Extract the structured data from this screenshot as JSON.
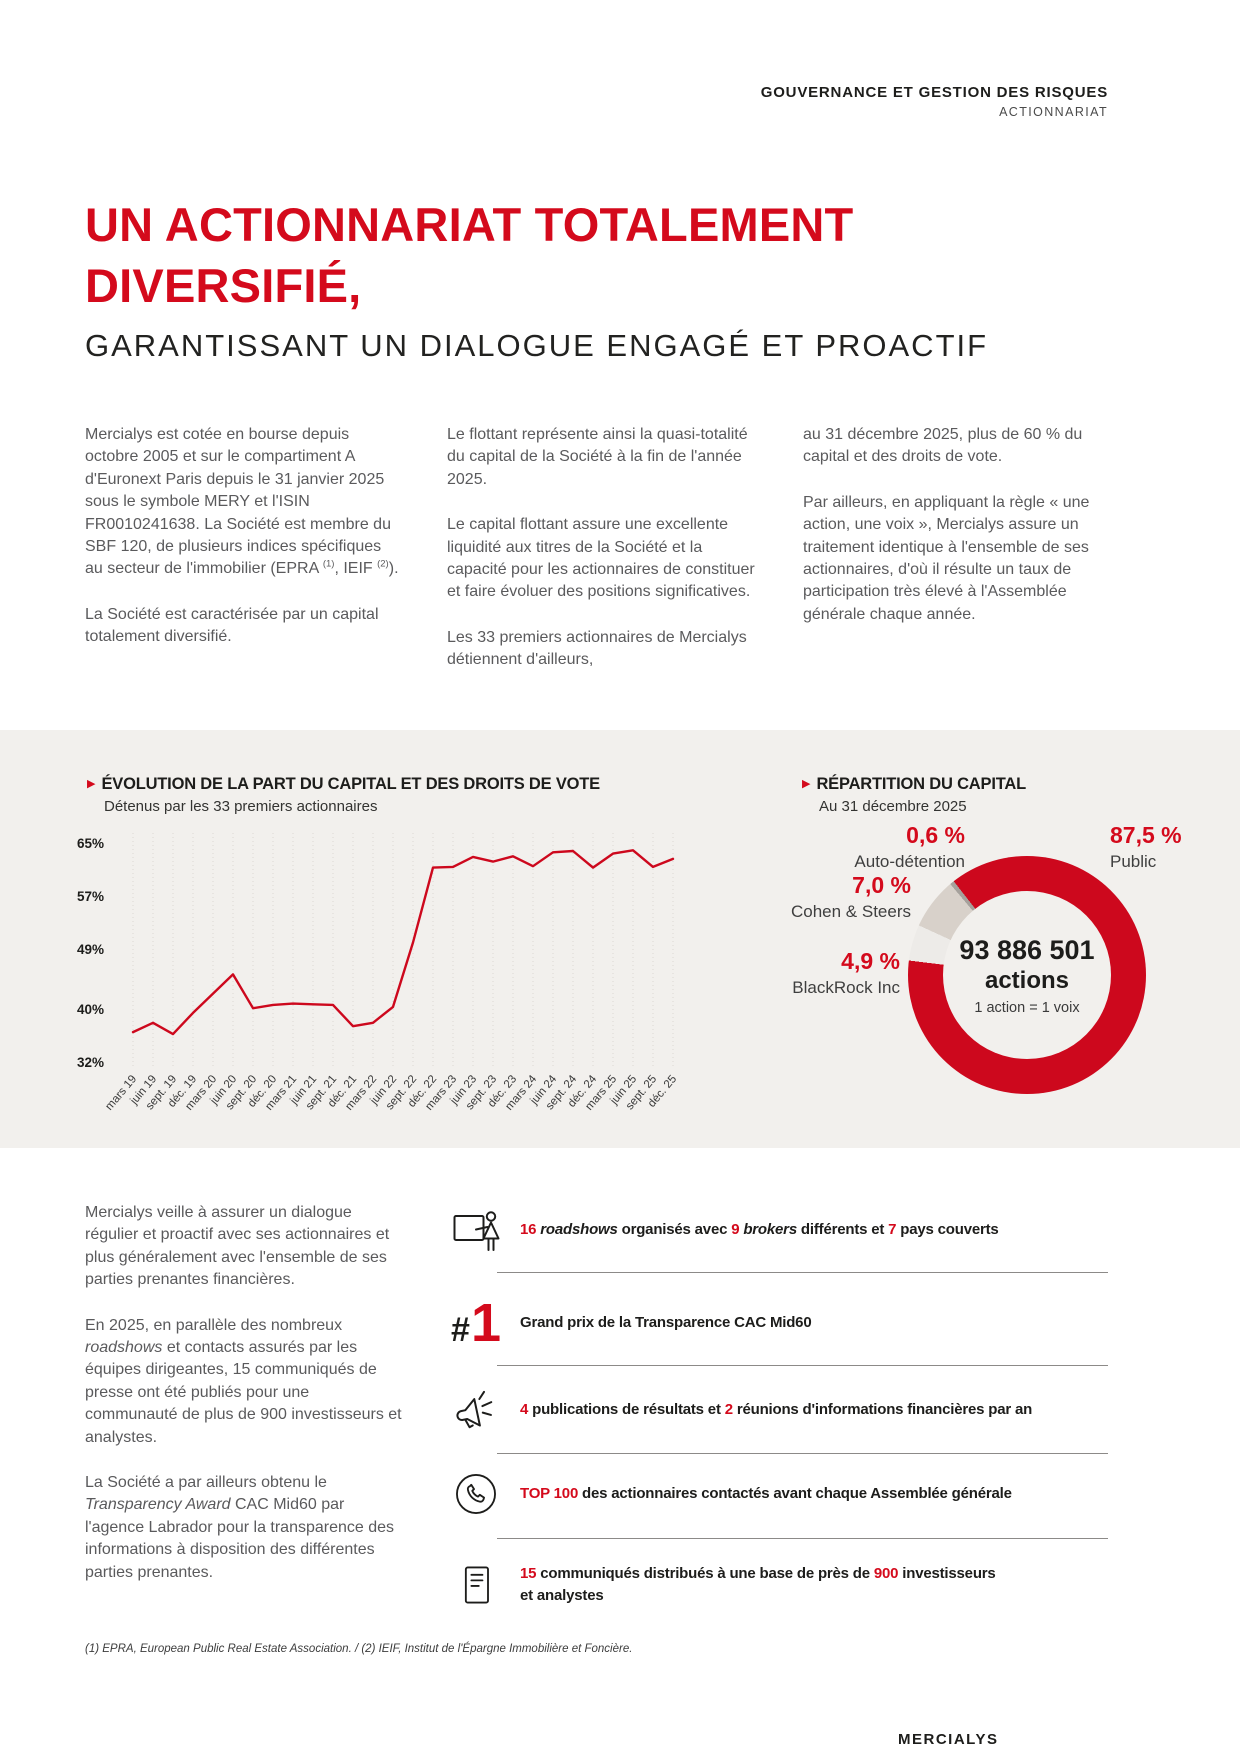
{
  "meta": {
    "doc_header_line1": "GOUVERNANCE ET GESTION DES RISQUES",
    "doc_header_line2": "ACTIONNARIAT",
    "brand_red": "#d40a1c",
    "band_background": "#f2f0ed"
  },
  "title": {
    "line1": "UN ACTIONNARIAT TOTALEMENT",
    "line2": "DIVERSIFIÉ,",
    "subtitle": "GARANTISSANT UN DIALOGUE ENGAGÉ ET PROACTIF"
  },
  "intro": {
    "col1": {
      "p1_segments": [
        {
          "text": "Mercialys est cotée en bourse depuis octobre 2005 et sur le compartiment A d'Euronext Paris depuis le 31 janvier 2025 sous le symbole MERY et l'ISIN FR0010241638. La Société est membre du SBF 120, de plusieurs indices spécifiques au secteur de l'immobilier (EPRA "
        },
        {
          "text": "(1)",
          "sup": true
        },
        {
          "text": ", IEIF "
        },
        {
          "text": "(2)",
          "sup": true
        },
        {
          "text": ")."
        }
      ],
      "p2": "La Société est caractérisée par un capital totalement diversifié."
    },
    "col2": {
      "p1": "Le flottant représente ainsi la quasi-totalité du capital de la Société à la fin de l'année 2025.",
      "p2": "Le capital flottant assure une excellente liquidité aux titres de la Société et la capacité pour les actionnaires de constituer et faire évoluer des positions significatives.",
      "p3": "Les 33 premiers actionnaires de Mercialys détiennent d'ailleurs,"
    },
    "col3": {
      "p1": "au 31 décembre 2025, plus de 60 % du capital et des droits de vote.",
      "p2": "Par ailleurs, en appliquant la règle « une action, une voix », Mercialys assure un traitement identique à l'ensemble de ses actionnaires, d'où il résulte un taux de participation très élevé à l'Assemblée générale chaque année."
    }
  },
  "chart_data": [
    {
      "type": "line",
      "title": "ÉVOLUTION DE LA PART DU CAPITAL ET DES DROITS DE VOTE",
      "subtitle": "Détenus par les 33 premiers actionnaires",
      "x": [
        "mars 19",
        "juin 19",
        "sept. 19",
        "déc. 19",
        "mars 20",
        "juin 20",
        "sept. 20",
        "déc. 20",
        "mars 21",
        "juin 21",
        "sept. 21",
        "déc. 21",
        "mars 22",
        "juin 22",
        "sept. 22",
        "déc. 22",
        "mars 23",
        "juin 23",
        "sept. 23",
        "déc. 23",
        "mars 24",
        "juin 24",
        "sept. 24",
        "déc. 24",
        "mars 25",
        "juin 25",
        "sept. 25",
        "déc. 25"
      ],
      "values": [
        36.5,
        37.9,
        36.2,
        39.4,
        42.3,
        45.2,
        40.1,
        40.6,
        40.8,
        40.7,
        40.6,
        37.4,
        37.9,
        40.3,
        50.0,
        61.3,
        61.4,
        62.9,
        62.2,
        63.0,
        61.5,
        63.6,
        63.8,
        61.3,
        63.4,
        63.9,
        61.4,
        62.6
      ],
      "unit": "%",
      "ylim": [
        32,
        65
      ],
      "yticks": [
        {
          "value": 65,
          "label": "65%"
        },
        {
          "value": 57,
          "label": "57%"
        },
        {
          "value": 49,
          "label": "49%"
        },
        {
          "value": 40,
          "label": "40%"
        },
        {
          "value": 32,
          "label": "32%"
        }
      ],
      "line_color": "#cd081d",
      "grid": "vertical-dotted",
      "legend": "none"
    },
    {
      "type": "pie",
      "donut": true,
      "title": "RÉPARTITION DU CAPITAL",
      "subtitle": "Au 31 décembre 2025",
      "center": {
        "line1": "93 886 501",
        "line2": "actions",
        "line3": "1 action = 1 voix"
      },
      "slices": [
        {
          "label": "Public",
          "display": "87,5 %",
          "value": 87.5,
          "color": "#cd081d"
        },
        {
          "label": "Auto-détention",
          "display": "0,6 %",
          "value": 0.6,
          "color": "#a6a19c"
        },
        {
          "label": "Cohen & Steers",
          "display": "7,0 %",
          "value": 7.0,
          "color": "#d8d1ca"
        },
        {
          "label": "BlackRock Inc",
          "display": "4,9 %",
          "value": 4.9,
          "color": "#edebe8"
        }
      ],
      "gradient_from_deg": 322,
      "draw_order": [
        0,
        3,
        2,
        1
      ]
    }
  ],
  "dialogue": {
    "p1": "Mercialys veille à assurer un dialogue régulier et proactif avec ses actionnaires et plus généralement avec l'ensemble de ses parties prenantes financières.",
    "p2_segments": [
      {
        "text": "En 2025, en parallèle des nombreux "
      },
      {
        "text": "roadshows",
        "italic": true
      },
      {
        "text": " et contacts assurés par les équipes dirigeantes, 15 communiqués de presse ont été publiés pour une communauté de plus de 900 investisseurs et analystes."
      }
    ],
    "p3_segments": [
      {
        "text": "La Société a par ailleurs obtenu le "
      },
      {
        "text": "Transparency Award",
        "italic": true
      },
      {
        "text": " CAC Mid60 par l'agence Labrador pour la transparence des informations à disposition des différentes parties prenantes."
      }
    ]
  },
  "kpis": {
    "rows": [
      {
        "icon": "presentation-icon",
        "segments": [
          {
            "text": "16 ",
            "color": "#d40a1c"
          },
          {
            "text": "roadshows",
            "italic": true
          },
          {
            "text": " organisés avec "
          },
          {
            "text": "9 ",
            "color": "#d40a1c"
          },
          {
            "text": "brokers",
            "italic": true
          },
          {
            "text": " différents et "
          },
          {
            "text": "7",
            "color": "#d40a1c"
          },
          {
            "text": " pays couverts"
          }
        ]
      },
      {
        "icon": "rank-1-badge",
        "badge_hash": "#",
        "badge_number": "1",
        "segments": [
          {
            "text": "Grand prix de la Transparence CAC Mid60"
          }
        ]
      },
      {
        "icon": "megaphone-icon",
        "segments": [
          {
            "text": "4",
            "color": "#d40a1c"
          },
          {
            "text": " publications de résultats et "
          },
          {
            "text": "2",
            "color": "#d40a1c"
          },
          {
            "text": " réunions d'informations financières par an"
          }
        ]
      },
      {
        "icon": "phone-icon",
        "segments": [
          {
            "text": "TOP 100",
            "color": "#d40a1c"
          },
          {
            "text": " des actionnaires contactés avant chaque Assemblée générale"
          }
        ]
      },
      {
        "icon": "press-release-icon",
        "segments": [
          {
            "text": "15",
            "color": "#d40a1c"
          },
          {
            "text": " communiqués distribués à une base de près de "
          },
          {
            "text": "900",
            "color": "#d40a1c"
          },
          {
            "text": " investisseurs"
          },
          {
            "br": true
          },
          {
            "text": "et analystes"
          }
        ]
      }
    ]
  },
  "footnote": "(1) EPRA, European Public Real Estate Association. / (2) IEIF, Institut de l'Épargne Immobilière et Foncière.",
  "footer_logo": "MERCIALYS"
}
